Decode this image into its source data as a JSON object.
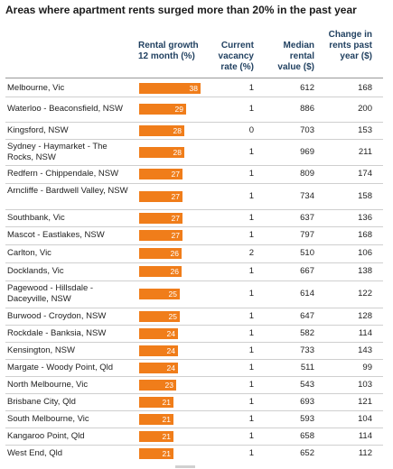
{
  "chart_data": {
    "type": "table",
    "title": "Areas where apartment rents surged more than 20% in the past year",
    "columns": [
      "",
      "Rental growth 12 month (%)",
      "Current vacancy rate (%)",
      "Median rental value ($)",
      "Change in rents past year ($)"
    ],
    "rows": [
      {
        "area": "Melbourne, Vic",
        "growth": 38,
        "vacancy": 1,
        "median": 612,
        "change": 168
      },
      {
        "area": "Waterloo - Beaconsfield, NSW",
        "growth": 29,
        "vacancy": 1,
        "median": 886,
        "change": 200
      },
      {
        "area": "Kingsford, NSW",
        "growth": 28,
        "vacancy": 0,
        "median": 703,
        "change": 153
      },
      {
        "area": "Sydney - Haymarket - The Rocks, NSW",
        "growth": 28,
        "vacancy": 1,
        "median": 969,
        "change": 211
      },
      {
        "area": "Redfern - Chippendale, NSW",
        "growth": 27,
        "vacancy": 1,
        "median": 809,
        "change": 174
      },
      {
        "area": "Arncliffe - Bardwell Valley, NSW",
        "growth": 27,
        "vacancy": 1,
        "median": 734,
        "change": 158
      },
      {
        "area": "Southbank, Vic",
        "growth": 27,
        "vacancy": 1,
        "median": 637,
        "change": 136
      },
      {
        "area": "Mascot - Eastlakes, NSW",
        "growth": 27,
        "vacancy": 1,
        "median": 797,
        "change": 168
      },
      {
        "area": "Carlton, Vic",
        "growth": 26,
        "vacancy": 2,
        "median": 510,
        "change": 106
      },
      {
        "area": "Docklands, Vic",
        "growth": 26,
        "vacancy": 1,
        "median": 667,
        "change": 138
      },
      {
        "area": "Pagewood - Hillsdale - Daceyville, NSW",
        "growth": 25,
        "vacancy": 1,
        "median": 614,
        "change": 122
      },
      {
        "area": "Burwood - Croydon, NSW",
        "growth": 25,
        "vacancy": 1,
        "median": 647,
        "change": 128
      },
      {
        "area": "Rockdale - Banksia, NSW",
        "growth": 24,
        "vacancy": 1,
        "median": 582,
        "change": 114
      },
      {
        "area": "Kensington, NSW",
        "growth": 24,
        "vacancy": 1,
        "median": 733,
        "change": 143
      },
      {
        "area": "Margate - Woody Point, Qld",
        "growth": 24,
        "vacancy": 1,
        "median": 511,
        "change": 99
      },
      {
        "area": "North Melbourne, Vic",
        "growth": 23,
        "vacancy": 1,
        "median": 543,
        "change": 103
      },
      {
        "area": "Brisbane City, Qld",
        "growth": 21,
        "vacancy": 1,
        "median": 693,
        "change": 121
      },
      {
        "area": "South Melbourne, Vic",
        "growth": 21,
        "vacancy": 1,
        "median": 593,
        "change": 104
      },
      {
        "area": "Kangaroo Point, Qld",
        "growth": 21,
        "vacancy": 1,
        "median": 658,
        "change": 114
      },
      {
        "area": "West End, Qld",
        "growth": 21,
        "vacancy": 1,
        "median": 652,
        "change": 112
      }
    ],
    "bar_max": 38
  },
  "colors": {
    "bar": "#f07d1a",
    "header_text": "#1f3f5f"
  }
}
